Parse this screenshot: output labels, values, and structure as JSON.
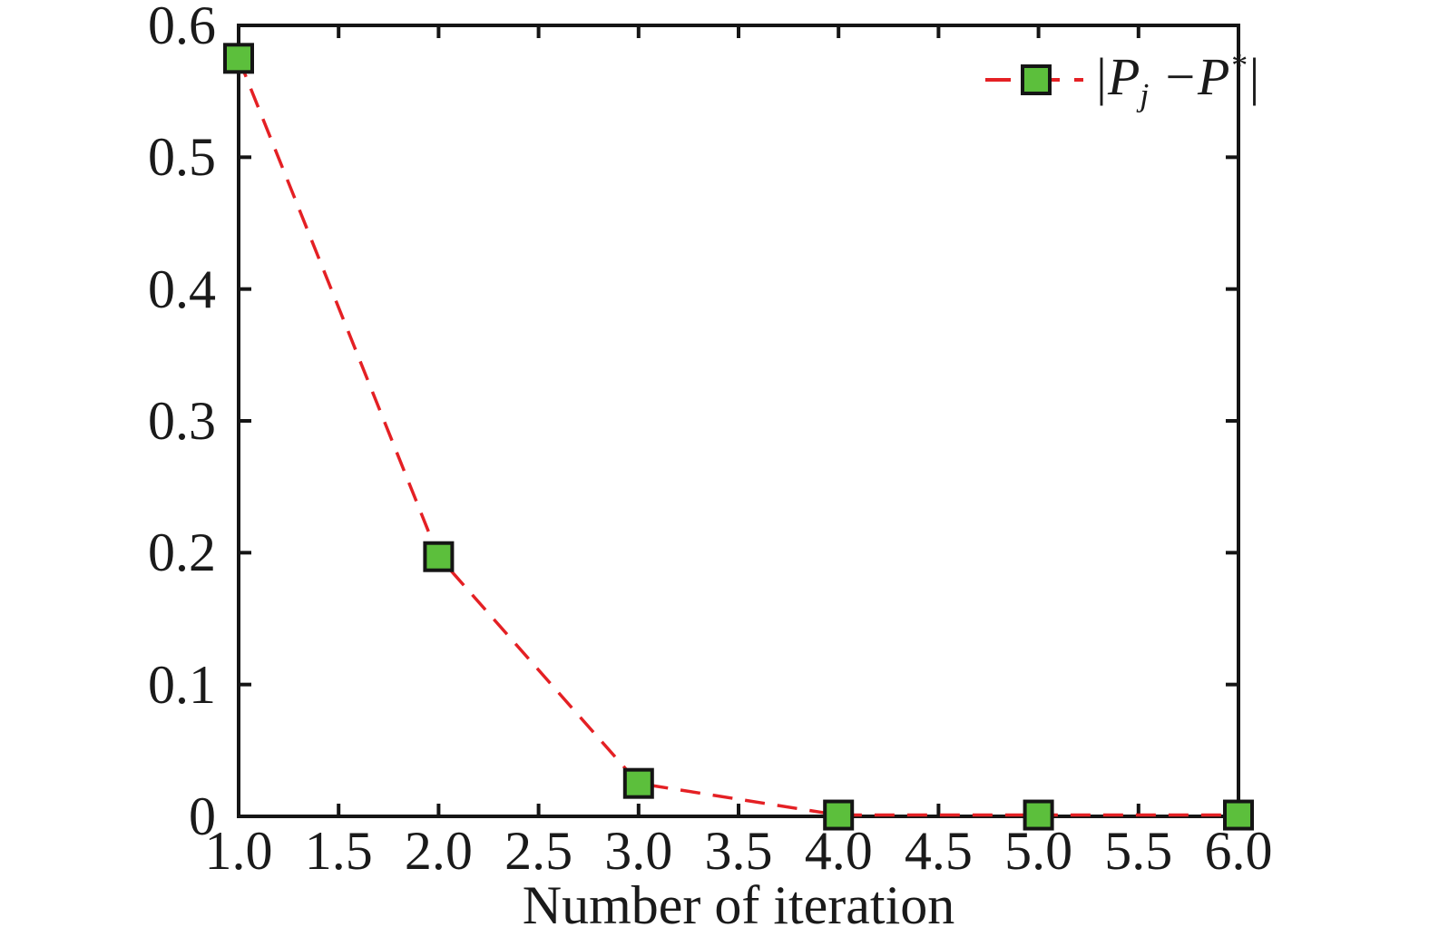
{
  "figure": {
    "background": "#ffffff"
  },
  "chart_data": {
    "type": "line",
    "title": "",
    "xlabel": "Number of iteration",
    "ylabel": "",
    "x": [
      1,
      2,
      3,
      4,
      5,
      6
    ],
    "series": [
      {
        "name": "|P_j − P*|",
        "values": [
          0.575,
          0.197,
          0.025,
          0.001,
          0.001,
          0.001
        ],
        "line_style": "dashed",
        "marker": "square"
      }
    ],
    "xlim": [
      1,
      6
    ],
    "ylim": [
      0,
      0.6
    ],
    "x_tick_values": [
      1.0,
      1.5,
      2.0,
      2.5,
      3.0,
      3.5,
      4.0,
      4.5,
      5.0,
      5.5,
      6.0
    ],
    "x_tick_labels": [
      "1.0",
      "1.5",
      "2.0",
      "2.5",
      "3.0",
      "3.5",
      "4.0",
      "4.5",
      "5.0",
      "5.5",
      "6.0"
    ],
    "y_tick_values": [
      0,
      0.1,
      0.2,
      0.3,
      0.4,
      0.5,
      0.6
    ],
    "y_tick_labels": [
      "0",
      "0.1",
      "0.2",
      "0.3",
      "0.4",
      "0.5",
      "0.6"
    ],
    "grid": false,
    "box": true,
    "ticks_direction": "in",
    "legend": {
      "position": "top-right",
      "frame": false,
      "label_parts": {
        "open": "|P",
        "sub": "j",
        "mid": " −P",
        "sup": "*",
        "close": "|"
      }
    },
    "colors": {
      "line": "#e42024",
      "marker_fill": "#5cbf3c",
      "marker_edge": "#151515",
      "axis": "#151515",
      "text": "#1a1a1a"
    }
  }
}
